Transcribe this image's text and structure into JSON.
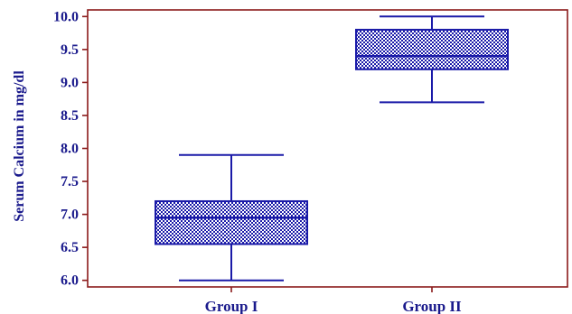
{
  "chart_data": {
    "type": "box",
    "title": "",
    "xlabel": "",
    "ylabel": "Serum Calcium in mg/dl",
    "ylim": [
      5.9,
      10.1
    ],
    "yticks": [
      "6.0",
      "6.5",
      "7.0",
      "7.5",
      "8.0",
      "8.5",
      "9.0",
      "9.5",
      "10.0"
    ],
    "ytick_values": [
      6.0,
      6.5,
      7.0,
      7.5,
      8.0,
      8.5,
      9.0,
      9.5,
      10.0
    ],
    "categories": [
      "Group I",
      "Group II"
    ],
    "series": [
      {
        "category": "Group I",
        "min": 6.0,
        "q1": 6.55,
        "median": 6.95,
        "q3": 7.2,
        "max": 7.9
      },
      {
        "category": "Group II",
        "min": 8.7,
        "q1": 9.2,
        "median": 9.4,
        "q3": 9.8,
        "max": 10.0
      }
    ],
    "grid": false,
    "colors": {
      "axis": "#8b1a1a",
      "box": "#1a1aa8",
      "text": "#1a1a8c"
    }
  }
}
